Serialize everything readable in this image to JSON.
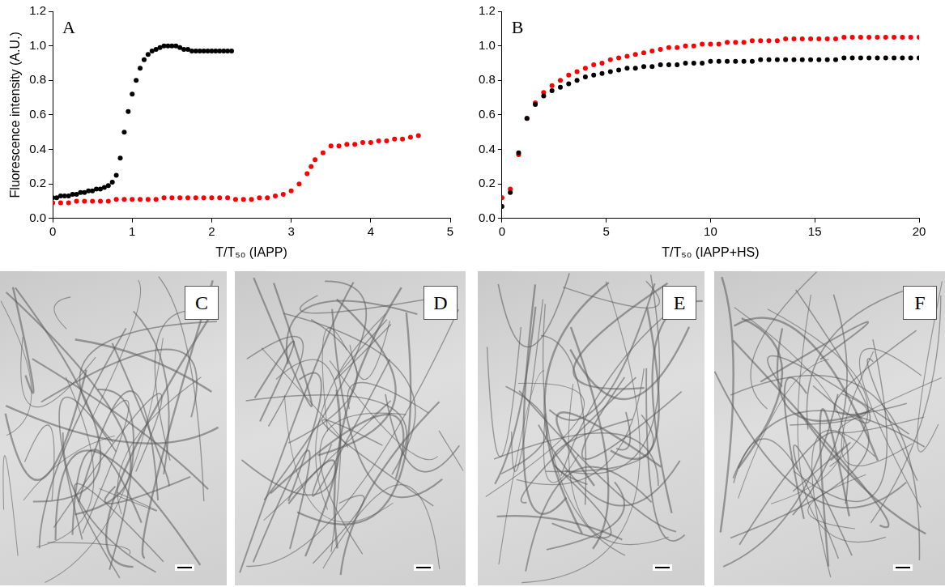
{
  "chart_data": [
    {
      "type": "scatter",
      "title": "A",
      "x_label": "T/T₅₀ (IAPP)",
      "y_label": "Fluorescence intensity (A.U.)",
      "xlim": [
        0,
        5
      ],
      "xticks": [
        0,
        1,
        2,
        3,
        4,
        5
      ],
      "ylim": [
        0,
        1.2
      ],
      "yticks": [
        {
          "value": 0,
          "label": "0.0"
        },
        {
          "value": 0.2,
          "label": "0.2"
        },
        {
          "value": 0.4,
          "label": "0.4"
        },
        {
          "value": 0.6,
          "label": "0.6"
        },
        {
          "value": 0.8,
          "label": "0.8"
        },
        {
          "value": 1.0,
          "label": "1.0"
        },
        {
          "value": 1.2,
          "label": "1.2"
        }
      ],
      "grid": false,
      "marker": "circle",
      "series": [
        {
          "color": "#000000",
          "x": [
            0,
            0.05,
            0.1,
            0.15,
            0.2,
            0.25,
            0.3,
            0.35,
            0.4,
            0.45,
            0.5,
            0.55,
            0.6,
            0.65,
            0.7,
            0.75,
            0.8,
            0.85,
            0.9,
            0.95,
            1.0,
            1.05,
            1.1,
            1.15,
            1.2,
            1.25,
            1.3,
            1.35,
            1.4,
            1.45,
            1.5,
            1.55,
            1.6,
            1.65,
            1.7,
            1.75,
            1.8,
            1.85,
            1.9,
            1.95,
            2.0,
            2.05,
            2.1,
            2.15,
            2.2,
            2.25
          ],
          "values": [
            0.12,
            0.12,
            0.13,
            0.13,
            0.13,
            0.14,
            0.14,
            0.15,
            0.15,
            0.16,
            0.16,
            0.17,
            0.17,
            0.18,
            0.19,
            0.21,
            0.25,
            0.35,
            0.5,
            0.62,
            0.72,
            0.8,
            0.87,
            0.92,
            0.95,
            0.97,
            0.98,
            0.99,
            1.0,
            1.0,
            1.0,
            1.0,
            0.99,
            0.98,
            0.98,
            0.97,
            0.97,
            0.97,
            0.97,
            0.97,
            0.97,
            0.97,
            0.97,
            0.97,
            0.97,
            0.97
          ]
        },
        {
          "color": "#ff0000",
          "x": [
            0,
            0.1,
            0.2,
            0.3,
            0.4,
            0.5,
            0.6,
            0.7,
            0.8,
            0.9,
            1.0,
            1.1,
            1.2,
            1.3,
            1.4,
            1.5,
            1.6,
            1.7,
            1.8,
            1.9,
            2.0,
            2.1,
            2.2,
            2.3,
            2.4,
            2.5,
            2.6,
            2.7,
            2.8,
            2.9,
            3.0,
            3.1,
            3.2,
            3.25,
            3.3,
            3.4,
            3.5,
            3.6,
            3.7,
            3.8,
            3.9,
            4.0,
            4.1,
            4.2,
            4.3,
            4.4,
            4.5,
            4.6
          ],
          "values": [
            0.09,
            0.09,
            0.09,
            0.1,
            0.1,
            0.1,
            0.1,
            0.1,
            0.11,
            0.11,
            0.11,
            0.11,
            0.11,
            0.11,
            0.12,
            0.12,
            0.12,
            0.12,
            0.12,
            0.12,
            0.12,
            0.12,
            0.12,
            0.11,
            0.11,
            0.11,
            0.12,
            0.12,
            0.13,
            0.14,
            0.16,
            0.2,
            0.26,
            0.3,
            0.34,
            0.38,
            0.42,
            0.42,
            0.43,
            0.43,
            0.44,
            0.44,
            0.45,
            0.45,
            0.46,
            0.46,
            0.47,
            0.48
          ]
        }
      ]
    },
    {
      "type": "scatter",
      "title": "B",
      "x_label": "T/T₅₀ (IAPP+HS)",
      "xlim": [
        0,
        20
      ],
      "xticks": [
        0,
        5,
        10,
        15,
        20
      ],
      "ylim": [
        0,
        1.2
      ],
      "yticks": [
        {
          "value": 0,
          "label": "0.0"
        },
        {
          "value": 0.2,
          "label": "0.2"
        },
        {
          "value": 0.4,
          "label": "0.4"
        },
        {
          "value": 0.6,
          "label": "0.6"
        },
        {
          "value": 0.8,
          "label": "0.8"
        },
        {
          "value": 1.0,
          "label": "1.0"
        },
        {
          "value": 1.2,
          "label": "1.2"
        }
      ],
      "grid": false,
      "marker": "circle",
      "series": [
        {
          "color": "#000000",
          "x": [
            0,
            0.4,
            0.8,
            1.2,
            1.6,
            2.0,
            2.4,
            2.8,
            3.2,
            3.6,
            4.0,
            4.4,
            4.8,
            5.2,
            5.6,
            6.0,
            6.4,
            6.8,
            7.2,
            7.6,
            8.0,
            8.4,
            8.8,
            9.2,
            9.6,
            10.0,
            10.4,
            10.8,
            11.2,
            11.6,
            12.0,
            12.4,
            12.8,
            13.2,
            13.6,
            14.0,
            14.4,
            14.8,
            15.2,
            15.6,
            16.0,
            16.4,
            16.8,
            17.2,
            17.6,
            18.0,
            18.4,
            18.8,
            19.2,
            19.6,
            20.0
          ],
          "values": [
            0.07,
            0.15,
            0.38,
            0.58,
            0.66,
            0.71,
            0.74,
            0.76,
            0.78,
            0.8,
            0.82,
            0.83,
            0.84,
            0.85,
            0.86,
            0.87,
            0.87,
            0.88,
            0.88,
            0.89,
            0.89,
            0.89,
            0.9,
            0.9,
            0.9,
            0.91,
            0.91,
            0.91,
            0.91,
            0.91,
            0.91,
            0.92,
            0.92,
            0.92,
            0.92,
            0.92,
            0.92,
            0.92,
            0.92,
            0.92,
            0.92,
            0.93,
            0.93,
            0.93,
            0.93,
            0.93,
            0.93,
            0.93,
            0.93,
            0.93,
            0.93
          ]
        },
        {
          "color": "#ff0000",
          "x": [
            0,
            0.4,
            0.8,
            1.2,
            1.6,
            2.0,
            2.4,
            2.8,
            3.2,
            3.6,
            4.0,
            4.4,
            4.8,
            5.2,
            5.6,
            6.0,
            6.4,
            6.8,
            7.2,
            7.6,
            8.0,
            8.4,
            8.8,
            9.2,
            9.6,
            10.0,
            10.4,
            10.8,
            11.2,
            11.6,
            12.0,
            12.4,
            12.8,
            13.2,
            13.6,
            14.0,
            14.4,
            14.8,
            15.2,
            15.6,
            16.0,
            16.4,
            16.8,
            17.2,
            17.6,
            18.0,
            18.4,
            18.8,
            19.2,
            19.6,
            20.0
          ],
          "values": [
            0.12,
            0.17,
            0.37,
            0.58,
            0.67,
            0.73,
            0.77,
            0.8,
            0.83,
            0.85,
            0.87,
            0.89,
            0.9,
            0.92,
            0.93,
            0.94,
            0.95,
            0.96,
            0.97,
            0.98,
            0.99,
            0.99,
            1.0,
            1.0,
            1.01,
            1.01,
            1.01,
            1.02,
            1.02,
            1.02,
            1.03,
            1.03,
            1.03,
            1.03,
            1.04,
            1.04,
            1.04,
            1.04,
            1.04,
            1.04,
            1.04,
            1.05,
            1.05,
            1.05,
            1.05,
            1.05,
            1.05,
            1.05,
            1.05,
            1.05,
            1.05
          ]
        }
      ]
    }
  ],
  "images": {
    "panels": [
      "C",
      "D",
      "E",
      "F"
    ]
  }
}
